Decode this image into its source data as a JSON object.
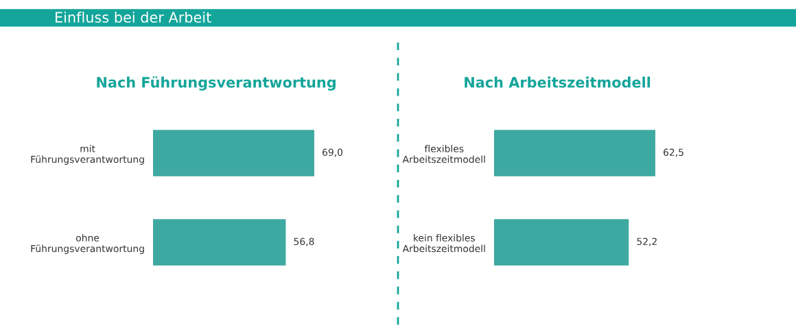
{
  "chart_data": [
    {
      "type": "bar",
      "orientation": "horizontal",
      "title": "Nach Führungsverantwortung",
      "annotations": [
        "Einfluss bei der Arbeit"
      ],
      "categories": [
        "mit Führungsverantwortung",
        "ohne Führungsverantwortung"
      ],
      "values": [
        69.0,
        56.8
      ],
      "value_labels": [
        "69,0",
        "56,8"
      ],
      "color": "#3ea9a0",
      "tick_labels": "y",
      "grid": false,
      "legend": false
    },
    {
      "type": "bar",
      "orientation": "horizontal",
      "title": "Nach Arbeitszeitmodell",
      "categories": [
        "flexibles Arbeitszeitmodell",
        "kein flexibles Arbeitszeitmodell"
      ],
      "values": [
        62.5,
        52.2
      ],
      "value_labels": [
        "62,5",
        "52,2"
      ],
      "color": "#3ea9a0",
      "tick_labels": "y",
      "grid": false,
      "legend": false
    }
  ]
}
